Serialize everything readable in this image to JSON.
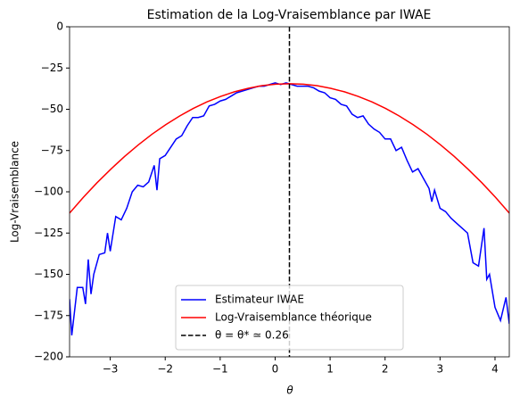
{
  "chart_data": {
    "type": "line",
    "title": "Estimation de la Log-Vraisemblance par IWAE",
    "xlabel": "θ",
    "ylabel": "Log-Vraisemblance",
    "xlim": [
      -3.74,
      4.26
    ],
    "ylim": [
      -200,
      0
    ],
    "xticks": [
      {
        "value": -3,
        "label": "−3"
      },
      {
        "value": -2,
        "label": "−2"
      },
      {
        "value": -1,
        "label": "−1"
      },
      0,
      1,
      2,
      3,
      4
    ],
    "yticks": [
      {
        "value": -200,
        "label": "−200"
      },
      {
        "value": -175,
        "label": "−175"
      },
      {
        "value": -150,
        "label": "−150"
      },
      {
        "value": -125,
        "label": "−125"
      },
      {
        "value": -100,
        "label": "−100"
      },
      {
        "value": -75,
        "label": "−75"
      },
      {
        "value": -50,
        "label": "−50"
      },
      {
        "value": -25,
        "label": "−25"
      },
      0
    ],
    "legend": "lower center",
    "series": [
      {
        "name": "Estimateur IWAE",
        "color": "#0000ff",
        "x": [
          -3.74,
          -3.7,
          -3.6,
          -3.5,
          -3.45,
          -3.4,
          -3.35,
          -3.3,
          -3.2,
          -3.1,
          -3.05,
          -3.0,
          -2.9,
          -2.8,
          -2.7,
          -2.6,
          -2.5,
          -2.4,
          -2.3,
          -2.2,
          -2.15,
          -2.1,
          -2.0,
          -1.9,
          -1.8,
          -1.7,
          -1.6,
          -1.5,
          -1.4,
          -1.3,
          -1.2,
          -1.1,
          -1.0,
          -0.9,
          -0.8,
          -0.7,
          -0.6,
          -0.5,
          -0.4,
          -0.3,
          -0.2,
          -0.1,
          0.0,
          0.1,
          0.2,
          0.3,
          0.4,
          0.5,
          0.6,
          0.7,
          0.8,
          0.9,
          1.0,
          1.1,
          1.2,
          1.3,
          1.4,
          1.5,
          1.6,
          1.7,
          1.8,
          1.9,
          2.0,
          2.1,
          2.2,
          2.3,
          2.4,
          2.5,
          2.6,
          2.7,
          2.8,
          2.85,
          2.9,
          3.0,
          3.1,
          3.2,
          3.3,
          3.4,
          3.5,
          3.6,
          3.7,
          3.8,
          3.85,
          3.9,
          4.0,
          4.1,
          4.2,
          4.26
        ],
        "values": [
          -165,
          -187,
          -158,
          -158,
          -168,
          -141,
          -162,
          -150,
          -138,
          -137,
          -125,
          -136,
          -115,
          -117,
          -110,
          -100,
          -96,
          -97,
          -94,
          -84,
          -99,
          -80,
          -78,
          -73,
          -68,
          -66,
          -60,
          -55,
          -55,
          -54,
          -48,
          -47,
          -45,
          -44,
          -42,
          -40,
          -39,
          -38,
          -37,
          -36,
          -36,
          -35,
          -34,
          -35,
          -34,
          -35,
          -36,
          -36,
          -36,
          -37,
          -39,
          -40,
          -43,
          -44,
          -47,
          -48,
          -53,
          -55,
          -54,
          -59,
          -62,
          -64,
          -68,
          -68,
          -75,
          -73,
          -81,
          -88,
          -86,
          -92,
          -98,
          -106,
          -99,
          -110,
          -112,
          -116,
          -119,
          -122,
          -125,
          -143,
          -145,
          -122,
          -153,
          -150,
          -170,
          -178,
          -164,
          -180
        ]
      },
      {
        "name": "Log-Vraisemblance théorique",
        "color": "#ff0000",
        "x": [
          -3.74,
          -3.49,
          -3.24,
          -2.99,
          -2.74,
          -2.49,
          -2.24,
          -1.99,
          -1.74,
          -1.49,
          -1.24,
          -0.99,
          -0.74,
          -0.49,
          -0.24,
          0.01,
          0.26,
          0.51,
          0.76,
          1.01,
          1.26,
          1.51,
          1.76,
          2.01,
          2.26,
          2.51,
          2.76,
          3.01,
          3.26,
          3.51,
          3.76,
          4.01,
          4.26
        ],
        "values": [
          -112.9,
          -103.4,
          -94.5,
          -86.3,
          -78.6,
          -71.6,
          -65.1,
          -59.3,
          -54.1,
          -49.5,
          -45.5,
          -42.2,
          -39.4,
          -37.3,
          -35.7,
          -34.8,
          -34.5,
          -34.8,
          -35.7,
          -37.3,
          -39.4,
          -42.2,
          -45.5,
          -49.5,
          -54.1,
          -59.3,
          -65.1,
          -71.6,
          -78.6,
          -86.3,
          -94.5,
          -103.4,
          -112.9
        ]
      }
    ],
    "vline": {
      "name": "θ = θ* ≃ 0.26",
      "x": 0.26,
      "color": "#000000"
    }
  }
}
